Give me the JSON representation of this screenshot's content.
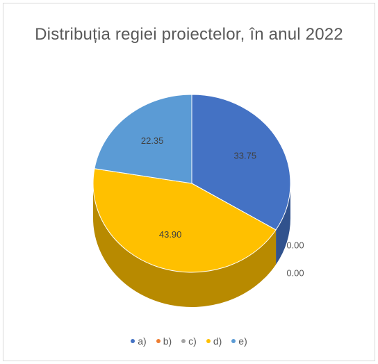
{
  "chart_data": {
    "type": "pie",
    "title": "Distribuția regiei proiectelor, în anul 2022",
    "legend_position": "bottom",
    "slices": [
      {
        "name": "a)",
        "value": 33.75,
        "label": "33.75",
        "color": "#4472c4"
      },
      {
        "name": "b)",
        "value": 0.0,
        "label": "0.00",
        "color": "#ed7d31"
      },
      {
        "name": "c)",
        "value": 0.0,
        "label": "0.00",
        "color": "#a5a5a5"
      },
      {
        "name": "d)",
        "value": 43.9,
        "label": "43.90",
        "color": "#ffc000"
      },
      {
        "name": "e)",
        "value": 22.35,
        "label": "22.35",
        "color": "#5b9bd5"
      }
    ]
  }
}
